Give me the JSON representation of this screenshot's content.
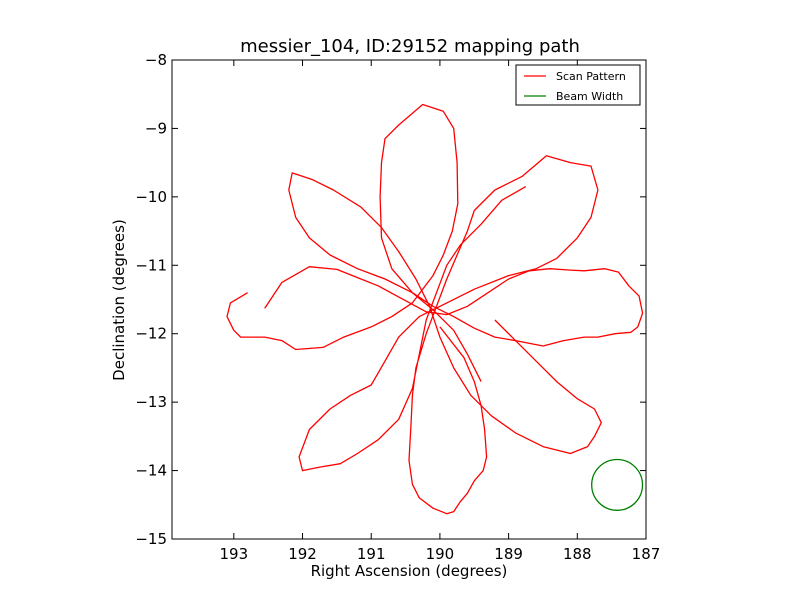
{
  "chart_data": {
    "type": "line",
    "title": "messier_104, ID:29152 mapping path",
    "xlabel": "Right Ascension (degrees)",
    "ylabel": "Declination (degrees)",
    "xlim": [
      193.9,
      187.0
    ],
    "ylim": [
      -15,
      -8
    ],
    "x_inverted": true,
    "xticks": [
      193,
      192,
      191,
      190,
      189,
      188,
      187
    ],
    "yticks": [
      -8,
      -9,
      -10,
      -11,
      -12,
      -13,
      -14,
      -15
    ],
    "xtick_labels": [
      "193",
      "192",
      "191",
      "190",
      "189",
      "188",
      "187"
    ],
    "ytick_labels": [
      "−8",
      "−9",
      "−10",
      "−11",
      "−12",
      "−13",
      "−14",
      "−15"
    ],
    "grid": false,
    "legend": {
      "placement": "top-right",
      "entries": [
        "Scan Pattern",
        "Beam Width"
      ]
    },
    "colors": {
      "scan": "#ff0000",
      "beam": "#008000"
    },
    "series": [
      {
        "name": "Scan Pattern",
        "color": "#ff0000",
        "points": [
          [
            192.55,
            -11.63
          ],
          [
            192.3,
            -11.25
          ],
          [
            191.9,
            -11.02
          ],
          [
            191.5,
            -11.06
          ],
          [
            191.2,
            -11.18
          ],
          [
            190.9,
            -11.3
          ],
          [
            190.55,
            -11.49
          ],
          [
            190.2,
            -11.68
          ],
          [
            189.9,
            -11.72
          ],
          [
            189.6,
            -11.6
          ],
          [
            189.3,
            -11.4
          ],
          [
            189.0,
            -11.2
          ],
          [
            188.7,
            -11.08
          ],
          [
            188.4,
            -11.05
          ],
          [
            188.1,
            -11.07
          ],
          [
            187.9,
            -11.08
          ],
          [
            187.6,
            -11.05
          ],
          [
            187.4,
            -11.1
          ],
          [
            187.25,
            -11.3
          ],
          [
            187.1,
            -11.45
          ],
          [
            187.05,
            -11.7
          ],
          [
            187.12,
            -11.9
          ],
          [
            187.22,
            -11.98
          ],
          [
            187.45,
            -12.0
          ],
          [
            187.7,
            -12.05
          ],
          [
            187.9,
            -12.05
          ],
          [
            188.2,
            -12.1
          ],
          [
            188.5,
            -12.18
          ],
          [
            188.9,
            -12.1
          ],
          [
            189.2,
            -12.05
          ],
          [
            189.5,
            -11.92
          ],
          [
            189.8,
            -11.75
          ],
          [
            190.1,
            -11.6
          ],
          [
            190.4,
            -11.4
          ],
          [
            190.7,
            -11.05
          ],
          [
            190.85,
            -10.6
          ],
          [
            190.87,
            -10.0
          ],
          [
            190.85,
            -9.5
          ],
          [
            190.8,
            -9.15
          ],
          [
            190.6,
            -8.95
          ],
          [
            190.25,
            -8.65
          ],
          [
            189.95,
            -8.75
          ],
          [
            189.8,
            -9.0
          ],
          [
            189.75,
            -9.5
          ],
          [
            189.74,
            -10.1
          ],
          [
            189.82,
            -10.5
          ],
          [
            189.95,
            -10.85
          ],
          [
            190.1,
            -11.15
          ],
          [
            190.4,
            -11.55
          ],
          [
            190.7,
            -11.75
          ],
          [
            191.0,
            -11.9
          ],
          [
            191.4,
            -12.05
          ],
          [
            191.7,
            -12.2
          ],
          [
            192.1,
            -12.23
          ],
          [
            192.3,
            -12.1
          ],
          [
            192.55,
            -12.05
          ],
          [
            192.9,
            -12.05
          ],
          [
            193.0,
            -11.95
          ],
          [
            193.1,
            -11.75
          ],
          [
            193.05,
            -11.55
          ],
          [
            192.8,
            -11.4
          ]
        ]
      },
      {
        "name": "Scan Pattern",
        "color": "#ff0000",
        "points": [
          [
            190.0,
            -11.9
          ],
          [
            189.65,
            -12.35
          ],
          [
            189.5,
            -12.7
          ],
          [
            189.4,
            -13.05
          ],
          [
            189.35,
            -13.4
          ],
          [
            189.32,
            -13.8
          ],
          [
            189.37,
            -14.0
          ],
          [
            189.5,
            -14.15
          ],
          [
            189.6,
            -14.33
          ],
          [
            189.7,
            -14.45
          ],
          [
            189.8,
            -14.6
          ],
          [
            189.9,
            -14.63
          ],
          [
            190.1,
            -14.55
          ],
          [
            190.3,
            -14.4
          ],
          [
            190.4,
            -14.2
          ],
          [
            190.45,
            -13.85
          ],
          [
            190.42,
            -13.3
          ],
          [
            190.4,
            -12.9
          ],
          [
            190.35,
            -12.5
          ],
          [
            190.2,
            -12.0
          ],
          [
            190.05,
            -11.6
          ],
          [
            189.9,
            -11.2
          ],
          [
            189.75,
            -10.85
          ],
          [
            189.6,
            -10.5
          ],
          [
            189.5,
            -10.2
          ],
          [
            189.2,
            -9.9
          ],
          [
            188.8,
            -9.7
          ],
          [
            188.45,
            -9.4
          ],
          [
            188.1,
            -9.5
          ],
          [
            187.8,
            -9.55
          ],
          [
            187.7,
            -9.9
          ],
          [
            187.8,
            -10.3
          ],
          [
            188.0,
            -10.6
          ],
          [
            188.3,
            -10.9
          ],
          [
            188.6,
            -11.05
          ],
          [
            189.0,
            -11.15
          ],
          [
            189.5,
            -11.35
          ],
          [
            189.9,
            -11.55
          ],
          [
            190.3,
            -11.75
          ],
          [
            190.6,
            -12.05
          ],
          [
            190.8,
            -12.4
          ],
          [
            191.0,
            -12.75
          ],
          [
            191.3,
            -12.9
          ],
          [
            191.6,
            -13.1
          ],
          [
            191.9,
            -13.4
          ],
          [
            192.05,
            -13.8
          ],
          [
            192.0,
            -14.0
          ],
          [
            191.75,
            -13.95
          ],
          [
            191.45,
            -13.9
          ],
          [
            191.2,
            -13.75
          ],
          [
            190.9,
            -13.55
          ],
          [
            190.6,
            -13.25
          ],
          [
            190.4,
            -12.8
          ],
          [
            190.3,
            -12.3
          ],
          [
            190.2,
            -11.8
          ],
          [
            190.05,
            -11.4
          ],
          [
            189.9,
            -11.0
          ],
          [
            189.7,
            -10.7
          ],
          [
            189.4,
            -10.4
          ],
          [
            189.1,
            -10.05
          ],
          [
            188.75,
            -9.85
          ]
        ]
      },
      {
        "name": "Scan Pattern",
        "color": "#ff0000",
        "points": [
          [
            189.2,
            -11.8
          ],
          [
            188.9,
            -12.1
          ],
          [
            188.6,
            -12.4
          ],
          [
            188.3,
            -12.7
          ],
          [
            188.0,
            -12.95
          ],
          [
            187.75,
            -13.1
          ],
          [
            187.65,
            -13.3
          ],
          [
            187.75,
            -13.5
          ],
          [
            187.85,
            -13.65
          ],
          [
            188.1,
            -13.75
          ],
          [
            188.5,
            -13.65
          ],
          [
            188.9,
            -13.45
          ],
          [
            189.25,
            -13.2
          ],
          [
            189.55,
            -12.9
          ],
          [
            189.8,
            -12.5
          ],
          [
            190.0,
            -12.05
          ],
          [
            190.15,
            -11.6
          ],
          [
            190.35,
            -11.2
          ],
          [
            190.6,
            -10.8
          ],
          [
            190.85,
            -10.45
          ],
          [
            191.15,
            -10.15
          ],
          [
            191.55,
            -9.9
          ],
          [
            191.85,
            -9.75
          ],
          [
            192.15,
            -9.65
          ],
          [
            192.2,
            -9.9
          ],
          [
            192.1,
            -10.3
          ],
          [
            191.9,
            -10.6
          ],
          [
            191.6,
            -10.85
          ],
          [
            191.2,
            -11.05
          ],
          [
            190.8,
            -11.2
          ],
          [
            190.4,
            -11.4
          ],
          [
            190.1,
            -11.65
          ],
          [
            189.8,
            -11.95
          ],
          [
            189.6,
            -12.3
          ],
          [
            189.4,
            -12.7
          ]
        ]
      }
    ],
    "beam": {
      "name": "Beam Width",
      "center_ra": 187.42,
      "center_dec": -14.21,
      "radius_deg": 0.37
    }
  }
}
